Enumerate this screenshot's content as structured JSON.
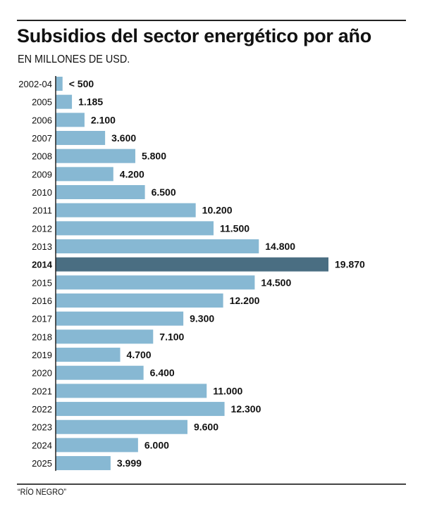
{
  "header": {
    "title": "Subsidios del sector energético por año",
    "subtitle": "EN MILLONES DE USD."
  },
  "footer": {
    "source": "“RÍO NEGRO”"
  },
  "colors": {
    "bar": "#87b8d3",
    "highlight": "#4a6e82",
    "axis": "#222222"
  },
  "chart_data": {
    "type": "bar",
    "orientation": "horizontal",
    "title": "Subsidios del sector energético por año",
    "subtitle": "EN MILLONES DE USD.",
    "xlabel": "",
    "ylabel": "",
    "unit": "millones de USD",
    "grid": false,
    "highlight": "2014",
    "categories": [
      "2002-04",
      "2005",
      "2006",
      "2007",
      "2008",
      "2009",
      "2010",
      "2011",
      "2012",
      "2013",
      "2014",
      "2015",
      "2016",
      "2017",
      "2018",
      "2019",
      "2020",
      "2021",
      "2022",
      "2023",
      "2024",
      "2025"
    ],
    "values": [
      500,
      1185,
      2100,
      3600,
      5800,
      4200,
      6500,
      10200,
      11500,
      14800,
      19870,
      14500,
      12200,
      9300,
      7100,
      4700,
      6400,
      11000,
      12300,
      9600,
      6000,
      3999
    ],
    "value_labels": [
      "< 500",
      "1.185",
      "2.100",
      "3.600",
      "5.800",
      "4.200",
      "6.500",
      "10.200",
      "11.500",
      "14.800",
      "19.870",
      "14.500",
      "12.200",
      "9.300",
      "7.100",
      "4.700",
      "6.400",
      "11.000",
      "12.300",
      "9.600",
      "6.000",
      "3.999"
    ],
    "xlim": [
      0,
      19870
    ]
  }
}
